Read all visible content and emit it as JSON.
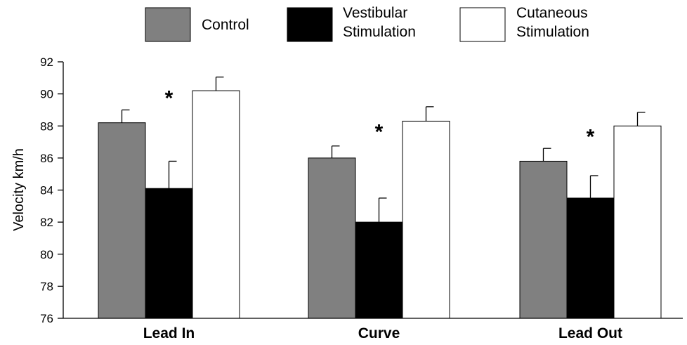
{
  "chart_data": {
    "type": "bar",
    "categories": [
      "Lead In",
      "Curve",
      "Lead Out"
    ],
    "series": [
      {
        "name": "Control",
        "color": "#808080",
        "values": [
          88.2,
          86.0,
          85.8
        ],
        "errors": [
          0.8,
          0.75,
          0.8
        ]
      },
      {
        "name": "Vestibular Stimulation",
        "color": "#000000",
        "values": [
          84.1,
          82.0,
          83.5
        ],
        "errors": [
          1.7,
          1.5,
          1.4
        ]
      },
      {
        "name": "Cutaneous Stimulation",
        "color": "#ffffff",
        "values": [
          90.2,
          88.3,
          88.0
        ],
        "errors": [
          0.85,
          0.9,
          0.85
        ]
      }
    ],
    "ylabel": "Velocity km/h",
    "xlabel": "",
    "ylim": [
      76,
      92
    ],
    "yticks": [
      76,
      78,
      80,
      82,
      84,
      86,
      88,
      90,
      92
    ],
    "annotations": [
      {
        "text": "*",
        "category": "Lead In",
        "series": "Vestibular Stimulation",
        "value": 90.0
      },
      {
        "text": "*",
        "category": "Curve",
        "series": "Vestibular Stimulation",
        "value": 87.9
      },
      {
        "text": "*",
        "category": "Lead Out",
        "series": "Vestibular Stimulation",
        "value": 87.6
      }
    ],
    "legend_placement": "top",
    "grid": false
  },
  "legend": {
    "items": [
      {
        "lines": [
          "Control"
        ]
      },
      {
        "lines": [
          "Vestibular",
          "Stimulation"
        ]
      },
      {
        "lines": [
          "Cutaneous",
          "Stimulation"
        ]
      }
    ]
  }
}
